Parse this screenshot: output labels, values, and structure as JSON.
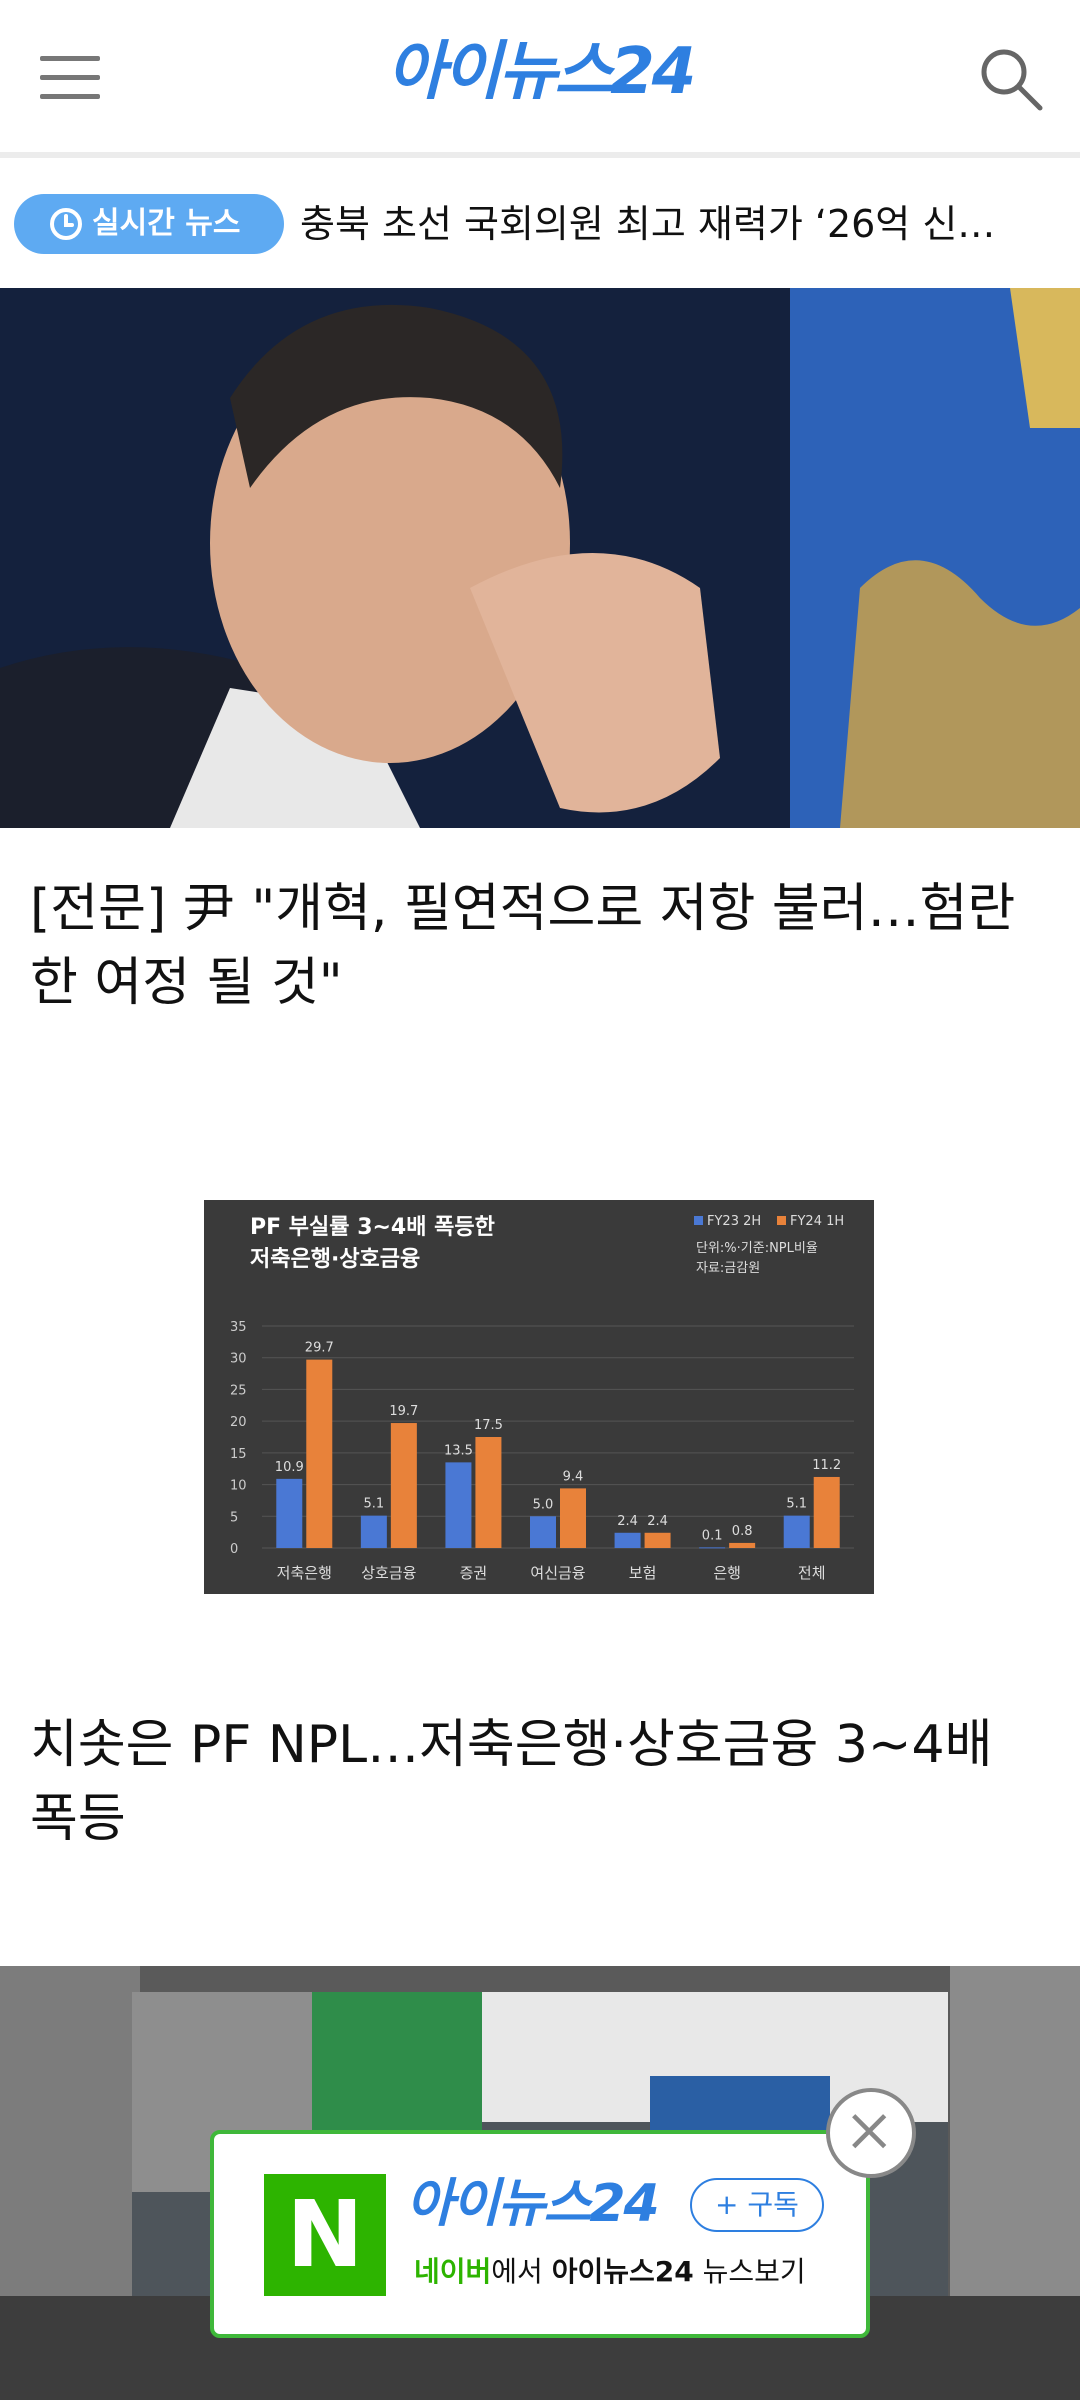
{
  "header": {
    "logo_text": "아이뉴스24",
    "menu_icon": "hamburger-menu-icon",
    "search_icon": "search-icon",
    "brand_color": "#2e7fe0"
  },
  "ticker": {
    "badge_label": "실시간 뉴스",
    "headline": "충북 초선 국회의원 최고 재력가 ‘26억 신…",
    "badge_color": "#5eaaf2"
  },
  "articles": [
    {
      "headline": "[전문] 尹 \"개혁, 필연적으로 저항 불러…험란한 여정 될 것\""
    },
    {
      "headline": "치솟은 PF NPL…저축은행·상호금융 3~4배 폭등"
    }
  ],
  "chart_data": {
    "type": "bar",
    "title_line1": "PF 부실률 3~4배 폭등한",
    "title_line2": "저축은행·상호금융",
    "note_line1": "단위:%·기준:NPL비율",
    "note_line2": "자료:금감원",
    "categories": [
      "저축은행",
      "상호금융",
      "증권",
      "여신금융",
      "보험",
      "은행",
      "전체"
    ],
    "series": [
      {
        "name": "FY23 2H",
        "color": "#4a78d4",
        "values": [
          10.9,
          5.1,
          13.5,
          5.0,
          2.4,
          0.1,
          5.1
        ]
      },
      {
        "name": "FY24 1H",
        "color": "#e8823a",
        "values": [
          29.7,
          19.7,
          17.5,
          9.4,
          2.4,
          0.8,
          11.2
        ]
      }
    ],
    "yticks": [
      0,
      5,
      10,
      15,
      20,
      25,
      30,
      35
    ],
    "ylim": [
      0,
      35
    ],
    "grid": true,
    "legend_position": "top-right"
  },
  "subscribe_banner": {
    "n_letter": "N",
    "logo_text": "아이뉴스24",
    "button_label": "+ 구독",
    "desc_part1": "네이버",
    "desc_part2": "에서 ",
    "desc_part3": "아이뉴스24",
    "desc_part4": " 뉴스보기",
    "accent_color": "#2db400"
  }
}
